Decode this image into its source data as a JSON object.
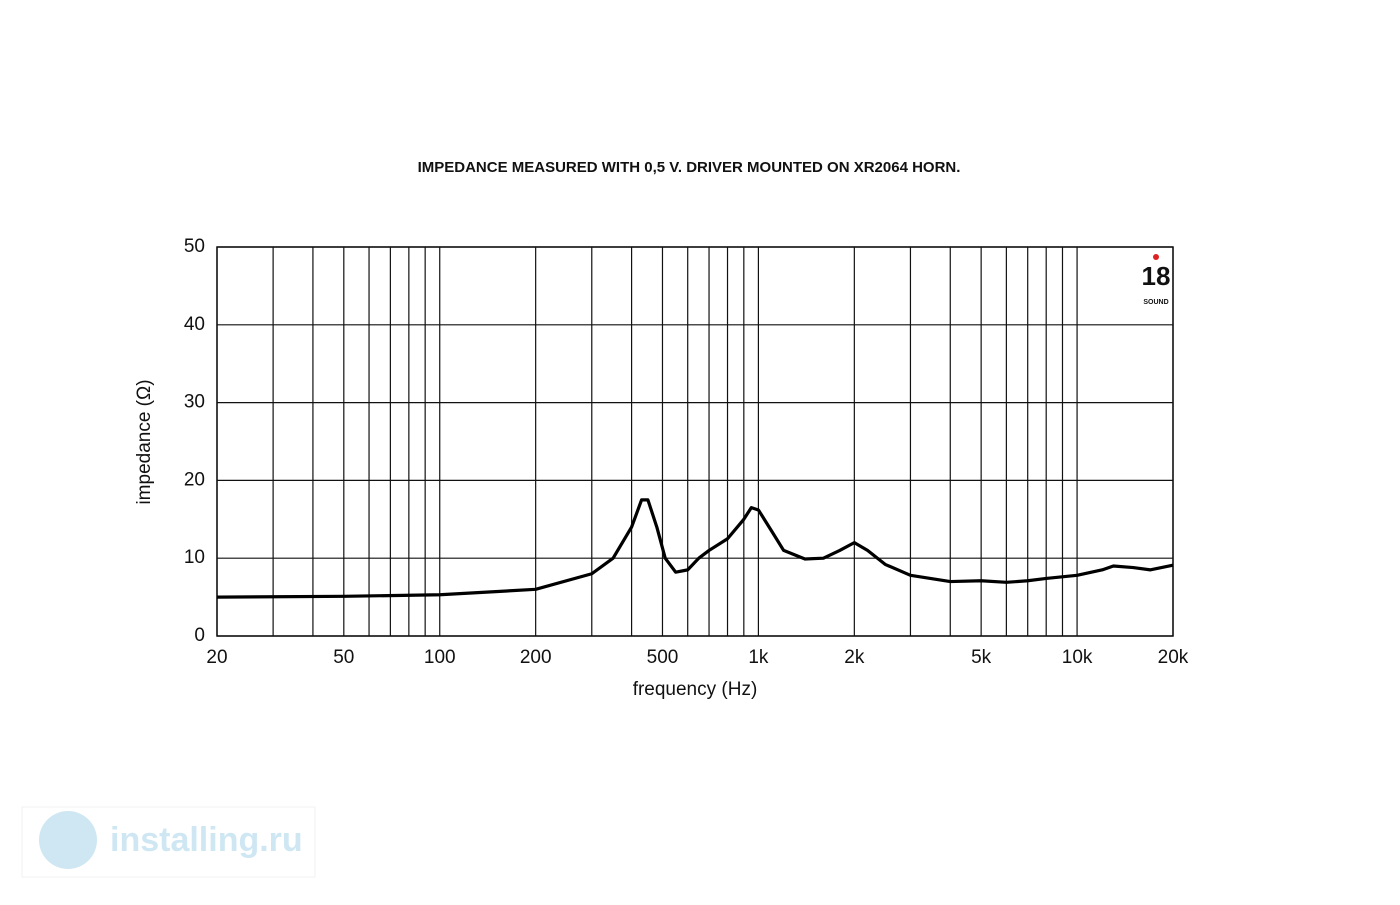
{
  "chart_data": {
    "type": "line",
    "title": "IMPEDANCE MEASURED WITH 0,5 V. DRIVER MOUNTED ON XR2064 HORN.",
    "x_label": "frequency (Hz)",
    "y_label": "impedance (Ω)",
    "x_scale": "log",
    "grid": true,
    "color": "#000000",
    "x": [
      20,
      50,
      100,
      200,
      300,
      350,
      400,
      430,
      450,
      480,
      510,
      550,
      600,
      650,
      700,
      800,
      900,
      950,
      1000,
      1100,
      1200,
      1400,
      1600,
      1800,
      2000,
      2200,
      2500,
      3000,
      4000,
      5000,
      6000,
      7000,
      8000,
      10000,
      12000,
      13000,
      15000,
      17000,
      20000
    ],
    "values": [
      5.0,
      5.1,
      5.3,
      6.0,
      8,
      10,
      14,
      17.5,
      17.5,
      14,
      10,
      8.2,
      8.5,
      10,
      11,
      12.5,
      15,
      16.5,
      16.2,
      13.5,
      11,
      9.9,
      10,
      11,
      12,
      11,
      9.2,
      7.8,
      7.0,
      7.1,
      6.9,
      7.1,
      7.4,
      7.8,
      8.5,
      9,
      8.8,
      8.5,
      9.1
    ],
    "xlim": [
      20,
      20000
    ],
    "ylim": [
      0,
      50
    ],
    "xticks": [
      20,
      50,
      100,
      200,
      500,
      {
        "value": 1000,
        "label": "1k"
      },
      {
        "value": 2000,
        "label": "2k"
      },
      {
        "value": 5000,
        "label": "5k"
      },
      {
        "value": 10000,
        "label": "10k"
      },
      {
        "value": 20000,
        "label": "20k"
      }
    ],
    "xminor": [
      30,
      40,
      60,
      70,
      80,
      90,
      300,
      400,
      600,
      700,
      800,
      900,
      3000,
      4000,
      6000,
      7000,
      8000,
      9000
    ],
    "yticks": [
      0,
      10,
      20,
      30,
      40,
      50
    ],
    "logo": {
      "number": "18",
      "text": "SOUND"
    }
  },
  "watermark": "installing.ru"
}
